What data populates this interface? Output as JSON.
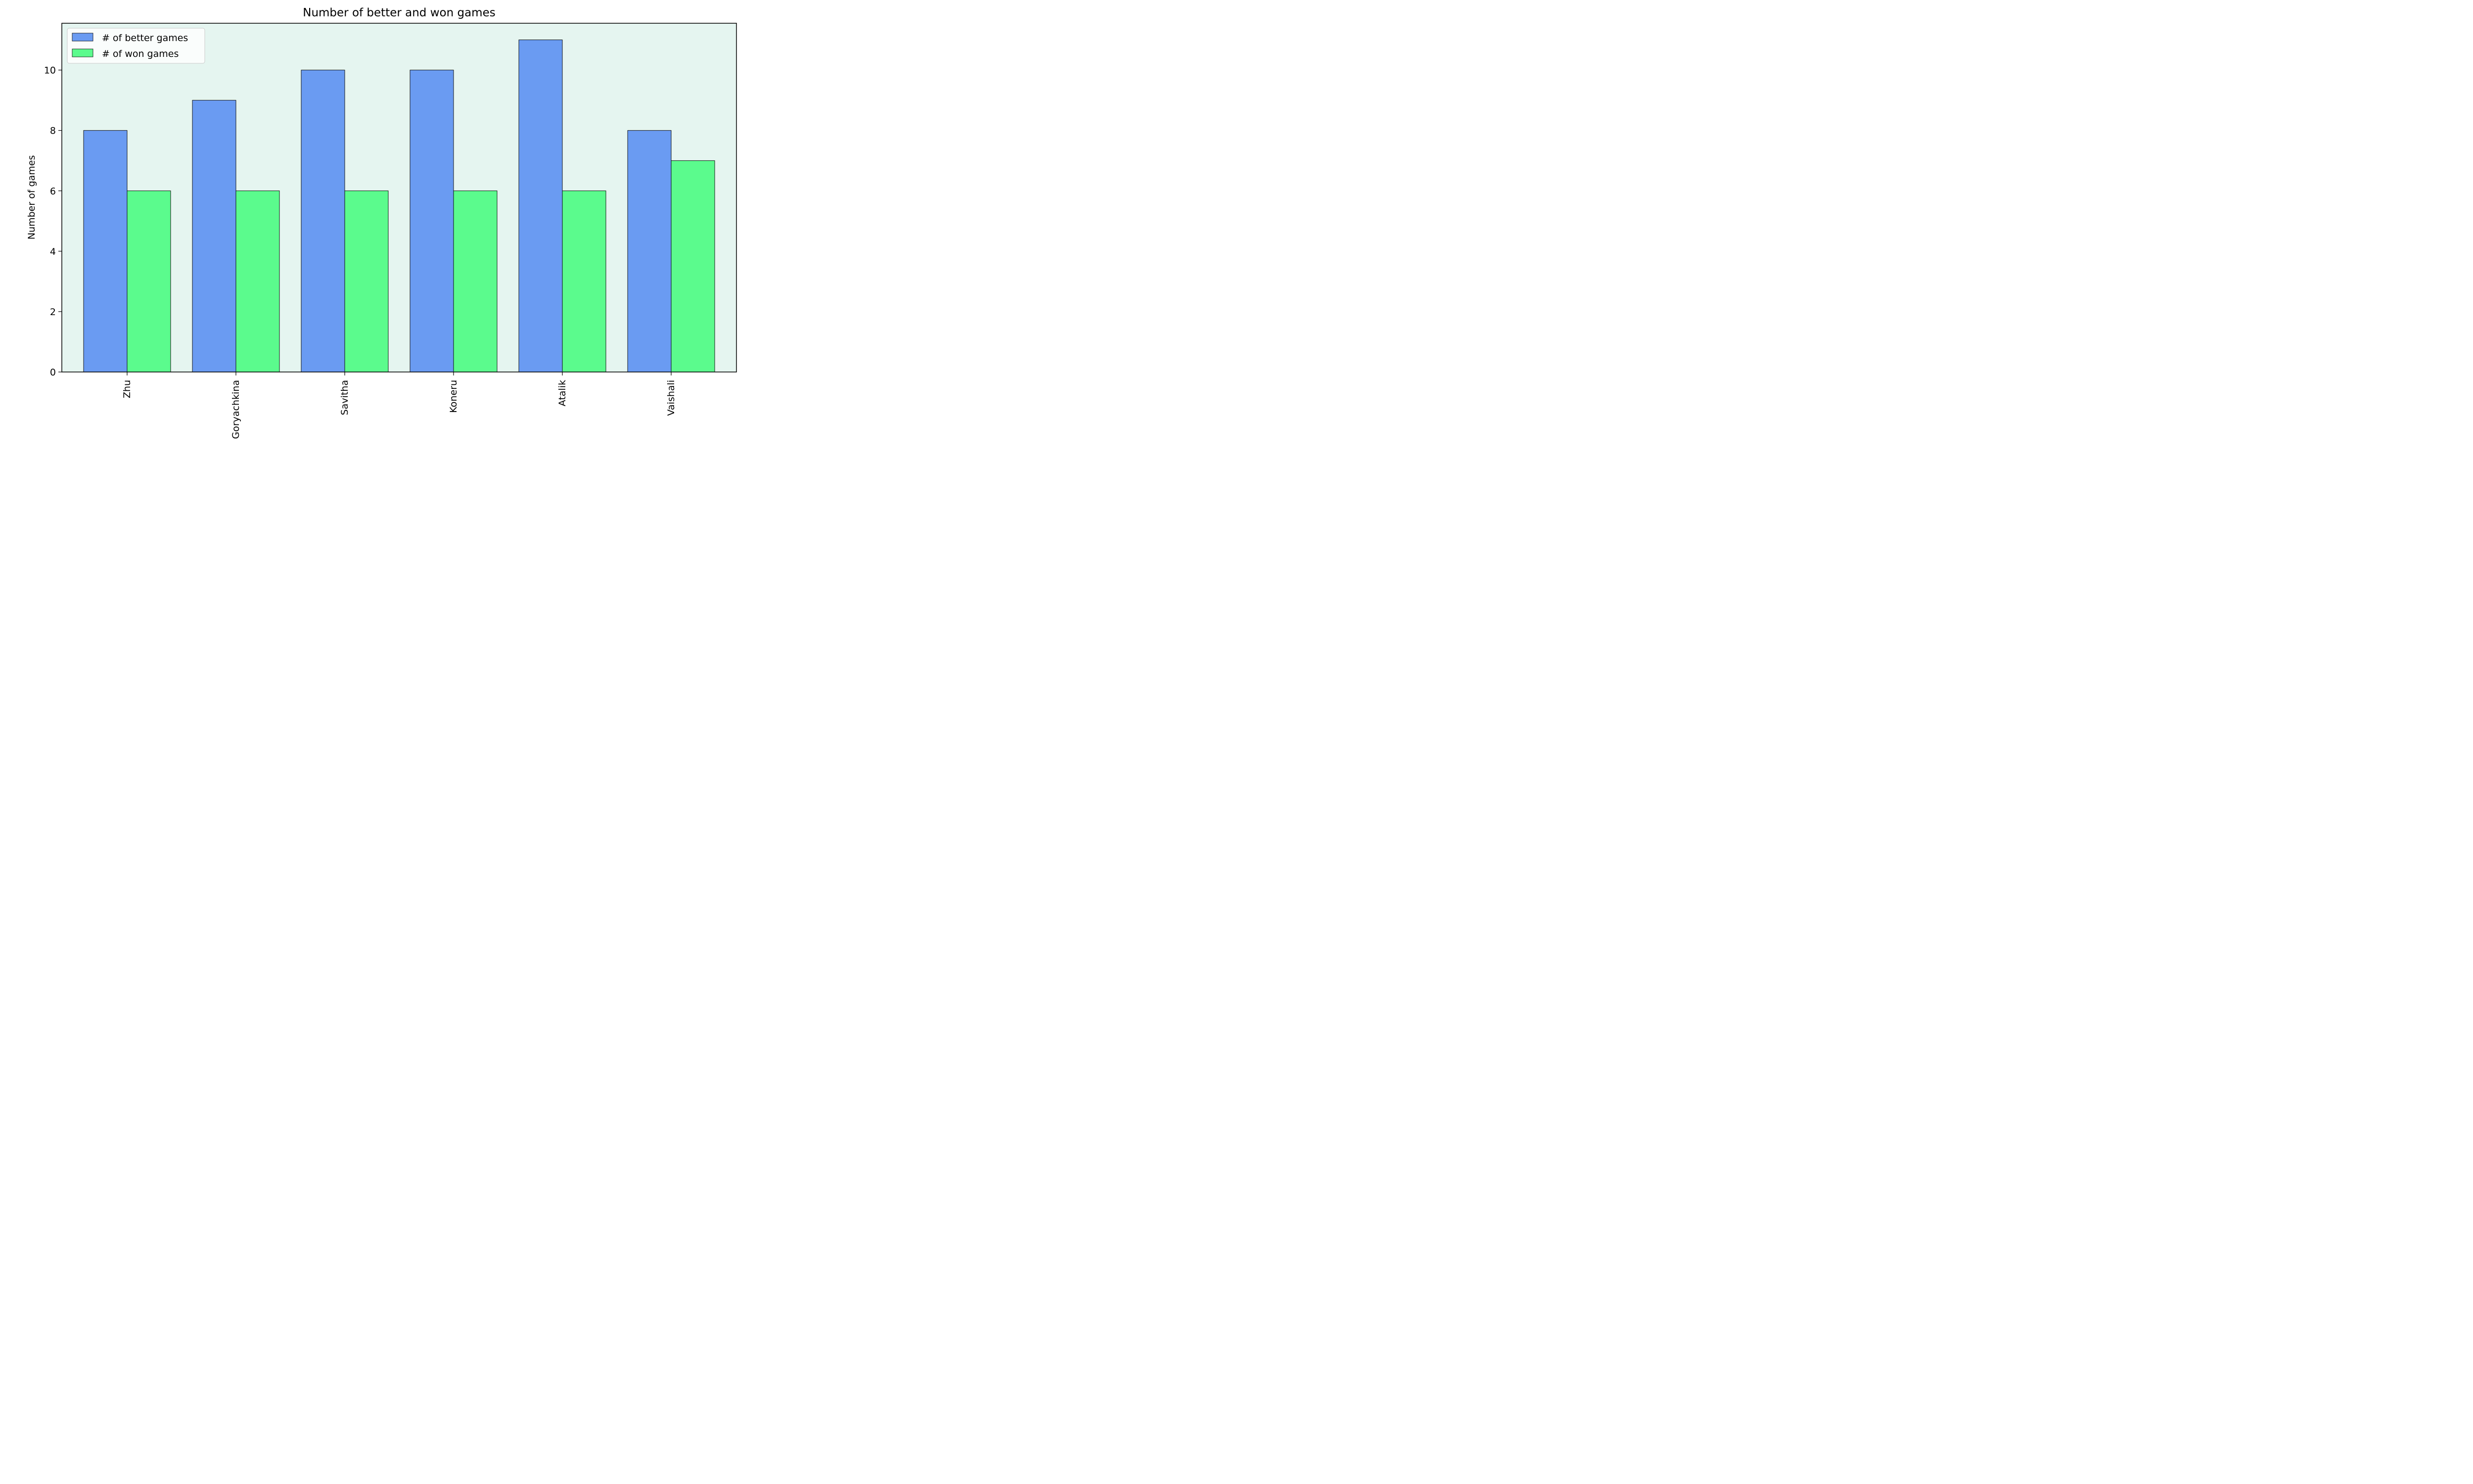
{
  "chart_data": {
    "type": "bar",
    "title": "Number of better and won games",
    "xlabel": "",
    "ylabel": "Number of games",
    "categories": [
      "Zhu",
      "Goryachkina",
      "Savitha",
      "Koneru",
      "Atalik",
      "Vaishali"
    ],
    "series": [
      {
        "name": "# of better games",
        "values": [
          8,
          9,
          10,
          10,
          11,
          8
        ],
        "color": "#6a9bf2"
      },
      {
        "name": "# of won games",
        "values": [
          6,
          6,
          6,
          6,
          6,
          7
        ],
        "color": "#5bfb8d"
      }
    ],
    "ylim": [
      0,
      11.55
    ],
    "yticks": [
      0,
      2,
      4,
      6,
      8,
      10
    ],
    "legend_position": "top-left",
    "grid": false,
    "plot_background": "#e5f5f0"
  }
}
